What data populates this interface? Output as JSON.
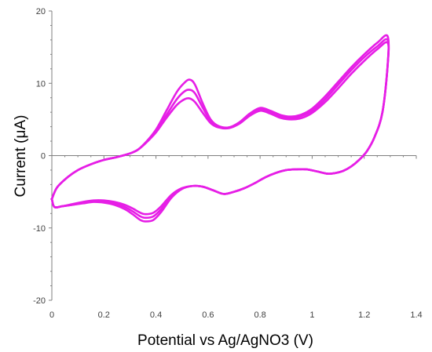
{
  "chart_data": {
    "type": "line",
    "title": "",
    "xlabel": "Potential vs Ag/AgNO3 (V)",
    "ylabel": "Current (μA)",
    "xlim": [
      0,
      1.4
    ],
    "ylim": [
      -20,
      20
    ],
    "x_ticks": [
      "0",
      "0.2",
      "0.4",
      "0.6",
      "0.8",
      "1",
      "1.2",
      "1.4"
    ],
    "y_ticks": [
      "-20",
      "-10",
      "0",
      "10",
      "20"
    ],
    "grid": false,
    "legend": "none",
    "line_color": "#e61ee6",
    "series": [
      {
        "x": [
          0.0,
          0.02,
          0.06,
          0.1,
          0.15,
          0.2,
          0.25,
          0.3,
          0.33,
          0.36,
          0.4,
          0.44,
          0.48,
          0.51,
          0.53,
          0.55,
          0.58,
          0.61,
          0.64,
          0.68,
          0.72,
          0.76,
          0.8,
          0.84,
          0.88,
          0.92,
          0.96,
          1.0,
          1.05,
          1.1,
          1.15,
          1.2,
          1.25,
          1.29,
          1.29,
          1.27,
          1.24,
          1.21,
          1.18,
          1.15,
          1.12,
          1.09,
          1.06,
          1.02,
          0.98,
          0.94,
          0.9,
          0.86,
          0.82,
          0.78,
          0.74,
          0.7,
          0.66,
          0.62,
          0.58,
          0.54,
          0.5,
          0.46,
          0.42,
          0.39,
          0.36,
          0.34,
          0.31,
          0.28,
          0.24,
          0.2,
          0.16,
          0.12,
          0.08,
          0.04,
          0.01,
          0.0
        ],
        "y": [
          -6.0,
          -4.4,
          -3.0,
          -2.0,
          -1.2,
          -0.6,
          -0.2,
          0.3,
          0.8,
          1.8,
          3.6,
          6.2,
          8.8,
          10.1,
          10.5,
          9.8,
          7.2,
          5.0,
          4.1,
          3.9,
          4.6,
          5.8,
          6.6,
          6.2,
          5.6,
          5.4,
          5.7,
          6.5,
          8.2,
          10.2,
          12.2,
          14.0,
          15.6,
          16.5,
          12.5,
          6.0,
          2.6,
          0.6,
          -0.6,
          -1.5,
          -2.1,
          -2.4,
          -2.5,
          -2.2,
          -1.9,
          -1.9,
          -2.0,
          -2.4,
          -3.0,
          -3.8,
          -4.5,
          -5.0,
          -5.3,
          -4.8,
          -4.3,
          -4.2,
          -4.6,
          -5.8,
          -7.8,
          -8.9,
          -9.1,
          -8.9,
          -8.1,
          -7.4,
          -6.8,
          -6.5,
          -6.4,
          -6.6,
          -6.8,
          -7.0,
          -7.1,
          -6.0
        ]
      },
      {
        "x": [
          0.0,
          0.02,
          0.06,
          0.1,
          0.15,
          0.2,
          0.25,
          0.3,
          0.33,
          0.36,
          0.4,
          0.44,
          0.48,
          0.51,
          0.53,
          0.55,
          0.58,
          0.61,
          0.64,
          0.68,
          0.72,
          0.76,
          0.8,
          0.84,
          0.88,
          0.92,
          0.96,
          1.0,
          1.05,
          1.1,
          1.15,
          1.2,
          1.25,
          1.29,
          1.29,
          1.27,
          1.24,
          1.21,
          1.18,
          1.15,
          1.12,
          1.09,
          1.06,
          1.02,
          0.98,
          0.94,
          0.9,
          0.86,
          0.82,
          0.78,
          0.74,
          0.7,
          0.66,
          0.62,
          0.58,
          0.54,
          0.5,
          0.46,
          0.42,
          0.39,
          0.36,
          0.34,
          0.31,
          0.28,
          0.24,
          0.2,
          0.16,
          0.12,
          0.08,
          0.04,
          0.01,
          0.0
        ],
        "y": [
          -6.0,
          -4.4,
          -3.0,
          -2.0,
          -1.2,
          -0.6,
          -0.2,
          0.3,
          0.8,
          1.8,
          3.4,
          5.6,
          7.8,
          8.9,
          9.1,
          8.6,
          6.6,
          4.8,
          4.0,
          3.9,
          4.5,
          5.7,
          6.4,
          6.0,
          5.4,
          5.2,
          5.5,
          6.2,
          7.8,
          9.8,
          11.8,
          13.6,
          15.1,
          16.0,
          12.5,
          6.0,
          2.6,
          0.6,
          -0.6,
          -1.5,
          -2.1,
          -2.4,
          -2.5,
          -2.2,
          -1.9,
          -1.9,
          -2.0,
          -2.4,
          -3.0,
          -3.8,
          -4.5,
          -5.0,
          -5.3,
          -4.8,
          -4.3,
          -4.2,
          -4.6,
          -5.6,
          -7.4,
          -8.4,
          -8.6,
          -8.4,
          -7.7,
          -7.1,
          -6.6,
          -6.3,
          -6.3,
          -6.5,
          -6.8,
          -7.0,
          -7.1,
          -6.0
        ]
      },
      {
        "x": [
          0.0,
          0.02,
          0.06,
          0.1,
          0.15,
          0.2,
          0.25,
          0.3,
          0.33,
          0.36,
          0.4,
          0.44,
          0.48,
          0.51,
          0.53,
          0.55,
          0.58,
          0.61,
          0.64,
          0.68,
          0.72,
          0.76,
          0.8,
          0.84,
          0.88,
          0.92,
          0.96,
          1.0,
          1.05,
          1.1,
          1.15,
          1.2,
          1.25,
          1.29,
          1.29,
          1.27,
          1.24,
          1.21,
          1.18,
          1.15,
          1.12,
          1.09,
          1.06,
          1.02,
          0.98,
          0.94,
          0.9,
          0.86,
          0.82,
          0.78,
          0.74,
          0.7,
          0.66,
          0.62,
          0.58,
          0.54,
          0.5,
          0.46,
          0.42,
          0.39,
          0.36,
          0.34,
          0.31,
          0.28,
          0.24,
          0.2,
          0.16,
          0.12,
          0.08,
          0.04,
          0.01,
          0.0
        ],
        "y": [
          -6.0,
          -4.4,
          -3.0,
          -2.0,
          -1.2,
          -0.6,
          -0.2,
          0.3,
          0.8,
          1.7,
          3.2,
          5.2,
          7.0,
          7.8,
          7.9,
          7.4,
          5.9,
          4.5,
          3.9,
          3.8,
          4.4,
          5.5,
          6.2,
          5.8,
          5.2,
          5.0,
          5.2,
          5.9,
          7.4,
          9.3,
          11.3,
          13.1,
          14.7,
          15.6,
          12.5,
          6.0,
          2.6,
          0.6,
          -0.6,
          -1.5,
          -2.1,
          -2.4,
          -2.5,
          -2.2,
          -1.9,
          -1.9,
          -2.0,
          -2.4,
          -3.0,
          -3.8,
          -4.5,
          -5.0,
          -5.3,
          -4.8,
          -4.3,
          -4.2,
          -4.5,
          -5.4,
          -7.0,
          -7.9,
          -8.1,
          -7.9,
          -7.3,
          -6.8,
          -6.4,
          -6.2,
          -6.2,
          -6.4,
          -6.7,
          -7.0,
          -7.1,
          -6.0
        ]
      }
    ]
  }
}
